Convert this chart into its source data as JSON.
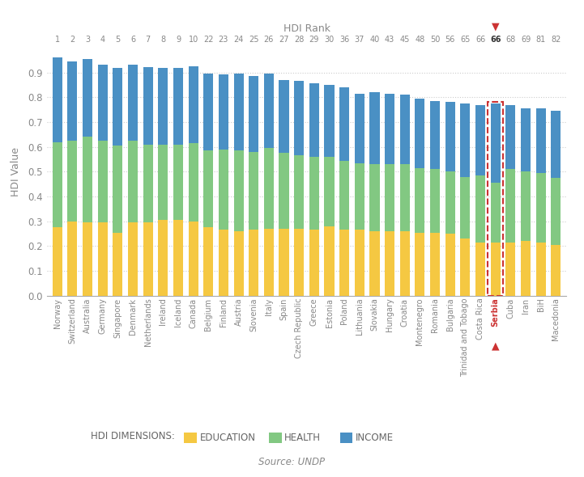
{
  "countries": [
    "Norway",
    "Switzerland",
    "Australia",
    "Germany",
    "Singapore",
    "Denmark",
    "Netherlands",
    "Ireland",
    "Iceland",
    "Canada",
    "Belgium",
    "Finland",
    "Austria",
    "Slovenia",
    "Italy",
    "Spain",
    "Czech Republic",
    "Greece",
    "Estonia",
    "Poland",
    "Lithuania",
    "Slovakia",
    "Hungary",
    "Croatia",
    "Montenegro",
    "Romania",
    "Bulgaria",
    "Trinidad and Tobago",
    "Costa Rica",
    "Serbia",
    "Cuba",
    "Iran",
    "BiH",
    "Macedonia"
  ],
  "hdi_ranks": [
    "1",
    "2",
    "3",
    "4",
    "5",
    "6",
    "7",
    "8",
    "9",
    "10",
    "22",
    "23",
    "24",
    "25",
    "26",
    "27",
    "28",
    "29",
    "30",
    "36",
    "37",
    "40",
    "43",
    "45",
    "48",
    "50",
    "56",
    "65",
    "66",
    "66",
    "68",
    "69",
    "81",
    "82"
  ],
  "education": [
    0.275,
    0.3,
    0.295,
    0.295,
    0.255,
    0.295,
    0.295,
    0.305,
    0.305,
    0.3,
    0.275,
    0.265,
    0.26,
    0.265,
    0.27,
    0.27,
    0.27,
    0.265,
    0.28,
    0.265,
    0.265,
    0.26,
    0.26,
    0.26,
    0.255,
    0.255,
    0.25,
    0.23,
    0.215,
    0.215,
    0.215,
    0.22,
    0.215,
    0.205
  ],
  "health": [
    0.345,
    0.325,
    0.345,
    0.33,
    0.35,
    0.33,
    0.315,
    0.305,
    0.305,
    0.315,
    0.31,
    0.325,
    0.325,
    0.315,
    0.325,
    0.305,
    0.295,
    0.295,
    0.28,
    0.28,
    0.27,
    0.27,
    0.27,
    0.27,
    0.26,
    0.255,
    0.25,
    0.25,
    0.27,
    0.24,
    0.295,
    0.28,
    0.28,
    0.27
  ],
  "income": [
    0.341,
    0.319,
    0.313,
    0.308,
    0.313,
    0.305,
    0.313,
    0.31,
    0.31,
    0.31,
    0.31,
    0.304,
    0.31,
    0.305,
    0.3,
    0.295,
    0.3,
    0.295,
    0.29,
    0.295,
    0.28,
    0.29,
    0.285,
    0.28,
    0.28,
    0.275,
    0.28,
    0.295,
    0.285,
    0.32,
    0.26,
    0.255,
    0.26,
    0.27
  ],
  "total_hdi": [
    0.944,
    0.939,
    0.938,
    0.926,
    0.925,
    0.924,
    0.922,
    0.921,
    0.921,
    0.92,
    0.9,
    0.895,
    0.895,
    0.89,
    0.892,
    0.885,
    0.878,
    0.873,
    0.865,
    0.855,
    0.85,
    0.845,
    0.84,
    0.83,
    0.802,
    0.802,
    0.794,
    0.78,
    0.777,
    0.771,
    0.775,
    0.766,
    0.75,
    0.748
  ],
  "color_education": "#F5C842",
  "color_health": "#82C882",
  "color_income": "#4A90C4",
  "color_serbia_border": "#CC3333",
  "background_color": "#FFFFFF",
  "ylabel": "HDI Value",
  "top_xlabel": "HDI Rank",
  "source_text": "Source: UNDP",
  "legend_label": "HDI DIMENSIONS:",
  "serbia_index": 29
}
